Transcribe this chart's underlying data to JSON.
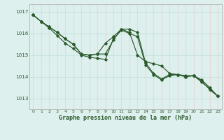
{
  "title": "Graphe pression niveau de la mer (hPa)",
  "bg_color": "#ddf0ee",
  "grid_color_h": "#c8e4e0",
  "grid_color_v": "#e8d8d8",
  "line_color": "#2d5a2d",
  "xlim": [
    -0.5,
    23.5
  ],
  "ylim": [
    1012.5,
    1017.35
  ],
  "yticks": [
    1013,
    1014,
    1015,
    1016,
    1017
  ],
  "xticks": [
    0,
    1,
    2,
    3,
    4,
    5,
    6,
    7,
    8,
    9,
    10,
    11,
    12,
    13,
    14,
    15,
    16,
    17,
    18,
    19,
    20,
    21,
    22,
    23
  ],
  "series1_x": [
    0,
    1,
    2,
    3,
    4,
    5,
    6,
    7,
    8,
    9,
    10,
    11,
    12,
    13,
    14,
    15,
    16,
    17,
    18,
    19,
    20,
    21,
    22,
    23
  ],
  "series1_y": [
    1016.85,
    1016.55,
    1016.3,
    1016.05,
    1015.75,
    1015.5,
    1015.05,
    1015.0,
    1015.05,
    1015.55,
    1015.85,
    1016.2,
    1016.2,
    1016.05,
    1014.65,
    1014.15,
    1013.9,
    1014.1,
    1014.1,
    1014.05,
    1014.05,
    1013.85,
    1013.5,
    1013.1
  ],
  "series2_x": [
    0,
    1,
    2,
    3,
    4,
    5,
    6,
    7,
    8,
    9,
    10,
    11,
    12,
    13,
    14,
    15,
    16,
    17,
    18,
    19,
    20,
    21,
    22,
    23
  ],
  "series2_y": [
    1016.85,
    1016.55,
    1016.3,
    1016.05,
    1015.75,
    1015.5,
    1015.05,
    1015.0,
    1015.05,
    1015.05,
    1015.7,
    1016.2,
    1016.05,
    1015.0,
    1014.7,
    1014.6,
    1014.5,
    1014.15,
    1014.1,
    1014.0,
    1014.05,
    1013.8,
    1013.4,
    1013.1
  ],
  "series3_x": [
    0,
    1,
    2,
    3,
    4,
    5,
    6,
    7,
    8,
    9,
    10,
    11,
    12,
    13,
    14,
    15,
    16,
    17,
    18,
    19,
    20,
    21,
    22,
    23
  ],
  "series3_y": [
    1016.85,
    1016.55,
    1016.25,
    1015.9,
    1015.55,
    1015.3,
    1015.0,
    1014.9,
    1014.85,
    1014.8,
    1015.75,
    1016.15,
    1016.0,
    1015.85,
    1014.55,
    1014.1,
    1013.85,
    1014.05,
    1014.1,
    1014.0,
    1014.05,
    1013.75,
    1013.45,
    1013.1
  ]
}
